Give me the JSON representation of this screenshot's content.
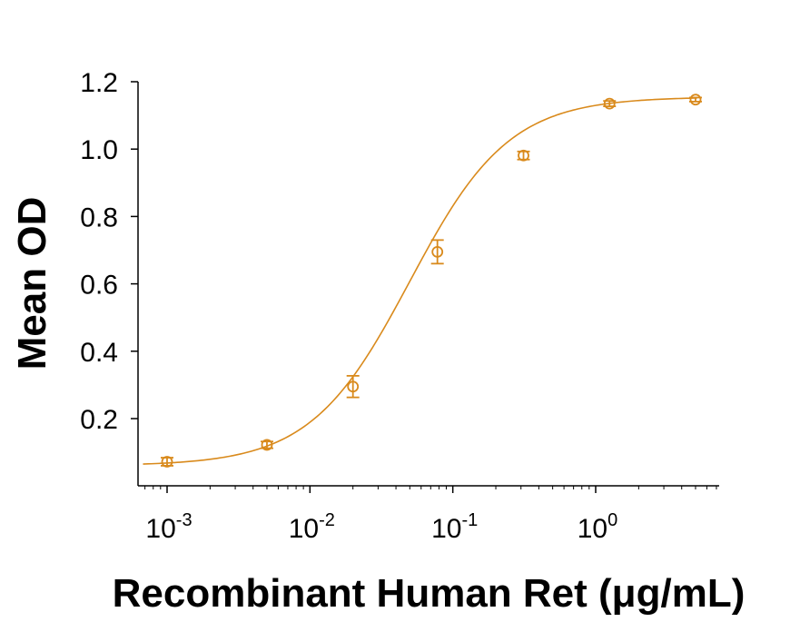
{
  "chart_data": {
    "type": "scatter",
    "title": "",
    "xlabel": "Recombinant Human Ret (μg/mL)",
    "ylabel": "Mean OD",
    "x_scale": "log",
    "xlim": [
      0.00065,
      7.5
    ],
    "ylim": [
      0.0,
      1.2
    ],
    "x_ticks": [
      {
        "value": 0.001,
        "base": "10",
        "exp": "-3"
      },
      {
        "value": 0.01,
        "base": "10",
        "exp": "-2"
      },
      {
        "value": 0.1,
        "base": "10",
        "exp": "-1"
      },
      {
        "value": 1,
        "base": "10",
        "exp": "0"
      }
    ],
    "y_ticks": [
      "0.2",
      "0.4",
      "0.6",
      "0.8",
      "1.0",
      "1.2"
    ],
    "grid": false,
    "color": "#D98A1C",
    "series": [
      {
        "points": [
          {
            "x": 0.001,
            "y": 0.072,
            "err": 0.012
          },
          {
            "x": 0.005,
            "y": 0.122,
            "err": 0.01
          },
          {
            "x": 0.02,
            "y": 0.295,
            "err": 0.032
          },
          {
            "x": 0.078,
            "y": 0.695,
            "err": 0.035
          },
          {
            "x": 0.3125,
            "y": 0.981,
            "err": 0.012
          },
          {
            "x": 1.25,
            "y": 1.135,
            "err": 0.008
          },
          {
            "x": 5,
            "y": 1.147,
            "err": 0.006
          }
        ],
        "fit": {
          "model": "4PL",
          "bottom": 0.06,
          "top": 1.155,
          "ec50": 0.05,
          "hill": 1.25
        }
      }
    ]
  }
}
